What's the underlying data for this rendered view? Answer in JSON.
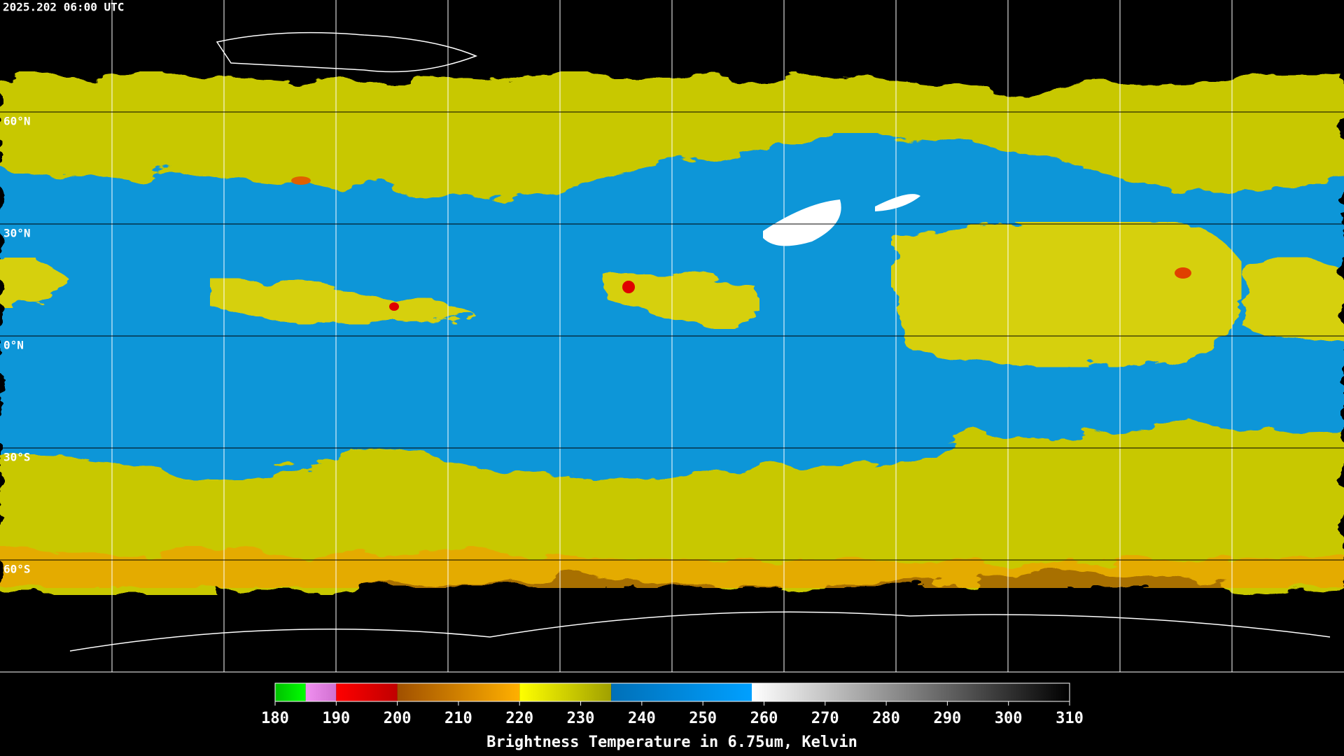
{
  "header": {
    "timestamp": "2025.202 06:00 UTC"
  },
  "map": {
    "lat_labels": [
      "60°N",
      "30°N",
      "0°N",
      "30°S",
      "60°S"
    ]
  },
  "colorbar": {
    "label": "Brightness Temperature in 6.75um, Kelvin",
    "ticks": [
      180,
      190,
      200,
      210,
      220,
      230,
      240,
      250,
      260,
      270,
      280,
      290,
      300,
      310
    ],
    "segments": [
      {
        "from": 180,
        "to": 185,
        "colors": [
          "#00c000",
          "#00ff00"
        ]
      },
      {
        "from": 185,
        "to": 190,
        "colors": [
          "#f090f0",
          "#d070d0"
        ]
      },
      {
        "from": 190,
        "to": 200,
        "colors": [
          "#ff0000",
          "#c00000"
        ]
      },
      {
        "from": 200,
        "to": 220,
        "colors": [
          "#a05000",
          "#ffb000"
        ]
      },
      {
        "from": 220,
        "to": 235,
        "colors": [
          "#ffff00",
          "#a0a000"
        ]
      },
      {
        "from": 235,
        "to": 258,
        "colors": [
          "#0070b8",
          "#00a0ff"
        ]
      },
      {
        "from": 258,
        "to": 310,
        "colors": [
          "#ffffff",
          "#000000"
        ]
      }
    ]
  }
}
